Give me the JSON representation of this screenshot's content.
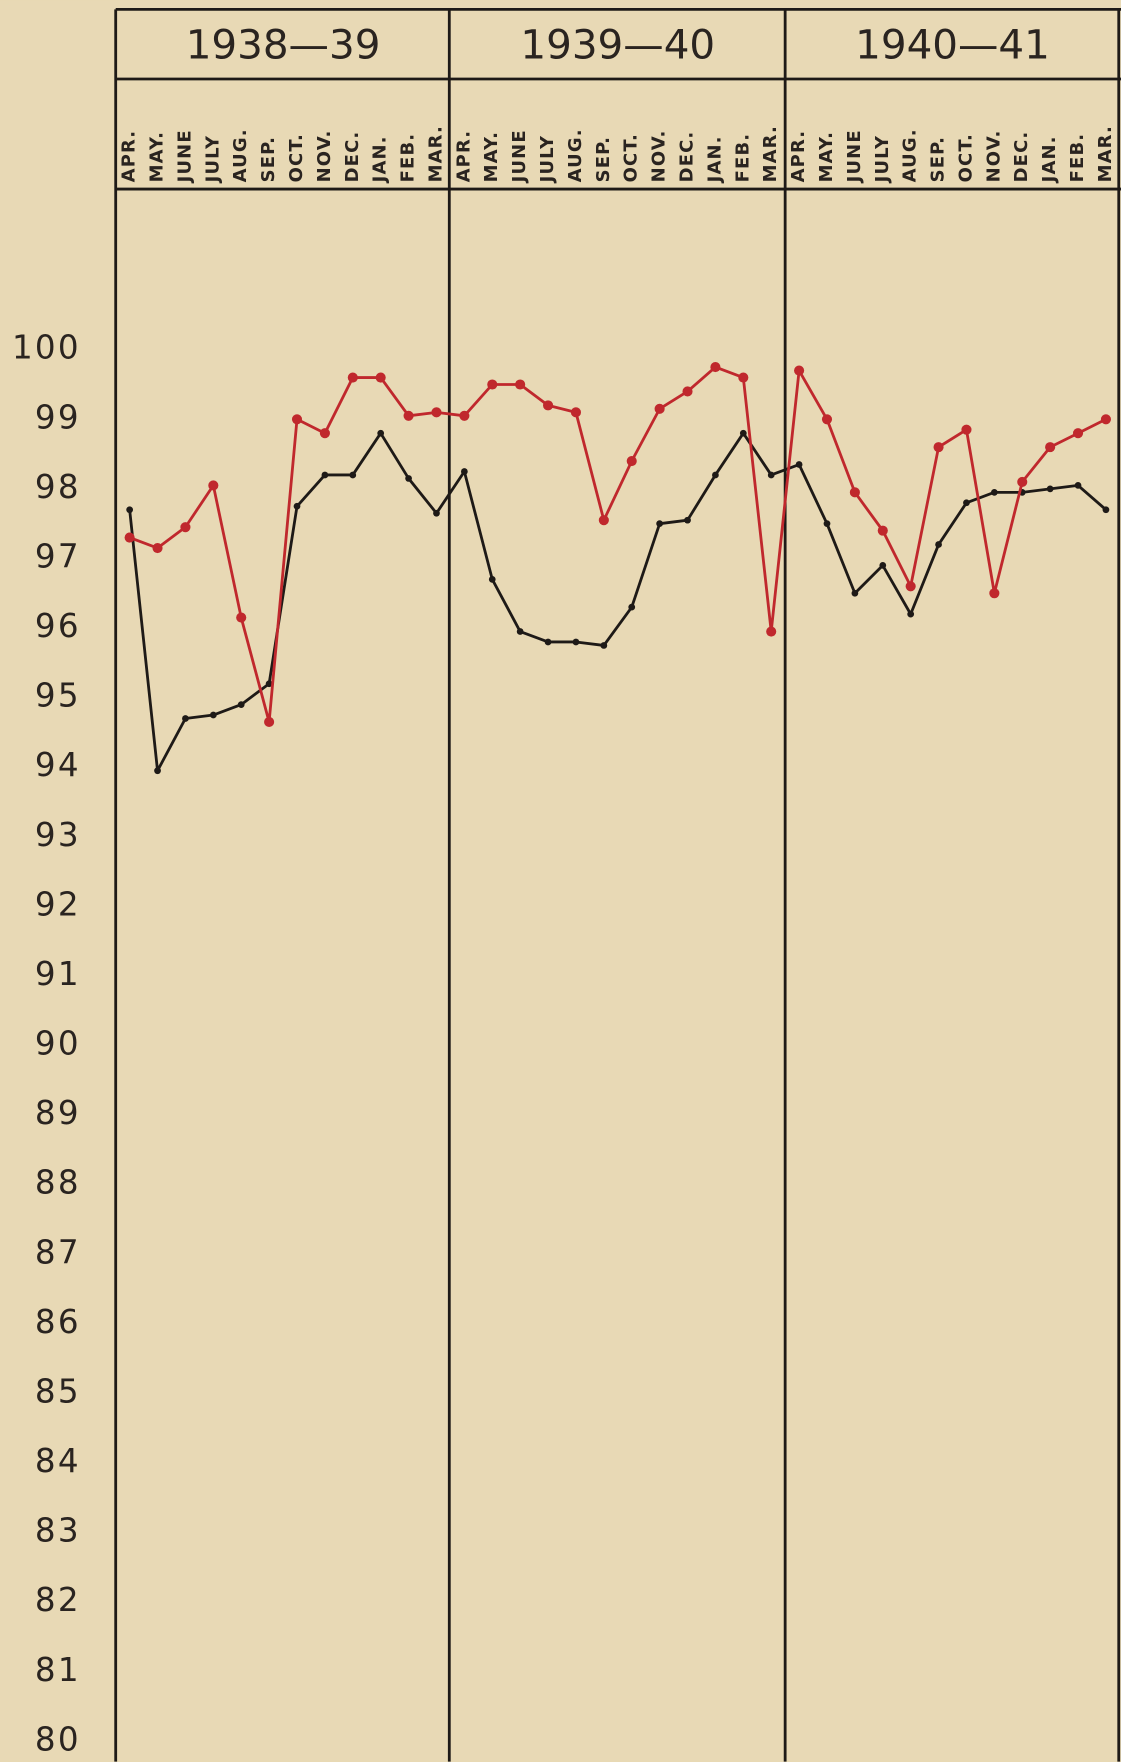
{
  "chart_data": {
    "type": "line",
    "groups": [
      "1938—39",
      "1939—40",
      "1940—41"
    ],
    "categories": [
      "APR.",
      "MAY.",
      "JUNE",
      "JULY",
      "AUG.",
      "SEP.",
      "OCT.",
      "NOV.",
      "DEC.",
      "JAN.",
      "FEB.",
      "MAR.",
      "APR.",
      "MAY.",
      "JUNE",
      "JULY",
      "AUG.",
      "SEP.",
      "OCT.",
      "NOV.",
      "DEC.",
      "JAN.",
      "FEB.",
      "MAR.",
      "APR.",
      "MAY.",
      "JUNE",
      "JULY",
      "AUG.",
      "SEP.",
      "OCT.",
      "NOV.",
      "DEC.",
      "JAN.",
      "FEB.",
      "MAR."
    ],
    "series": [
      {
        "color": "#1e1a17",
        "values": [
          97.7,
          93.95,
          94.7,
          94.75,
          94.9,
          95.2,
          97.75,
          98.2,
          98.2,
          98.8,
          98.15,
          97.65,
          98.25,
          96.7,
          95.95,
          95.8,
          95.8,
          95.75,
          96.3,
          97.5,
          97.55,
          98.2,
          98.8,
          98.2,
          98.35,
          97.5,
          96.5,
          96.9,
          96.2,
          97.2,
          97.8,
          97.95,
          97.95,
          98.0,
          98.05,
          97.7
        ]
      },
      {
        "color": "#c0282d",
        "values": [
          97.3,
          97.15,
          97.45,
          98.05,
          96.15,
          94.65,
          99.0,
          98.8,
          99.6,
          99.6,
          99.05,
          99.1,
          99.05,
          99.5,
          99.5,
          99.2,
          99.1,
          97.55,
          98.4,
          99.15,
          99.4,
          99.75,
          99.6,
          95.95,
          99.7,
          99.0,
          97.95,
          97.4,
          96.6,
          98.6,
          98.85,
          96.5,
          98.1,
          98.6,
          98.8,
          99.0
        ]
      }
    ],
    "ylim": [
      80,
      100
    ],
    "yticks": [
      80,
      81,
      82,
      83,
      84,
      85,
      86,
      87,
      88,
      89,
      90,
      91,
      92,
      93,
      94,
      95,
      96,
      97,
      98,
      99,
      100
    ],
    "grid": false
  }
}
